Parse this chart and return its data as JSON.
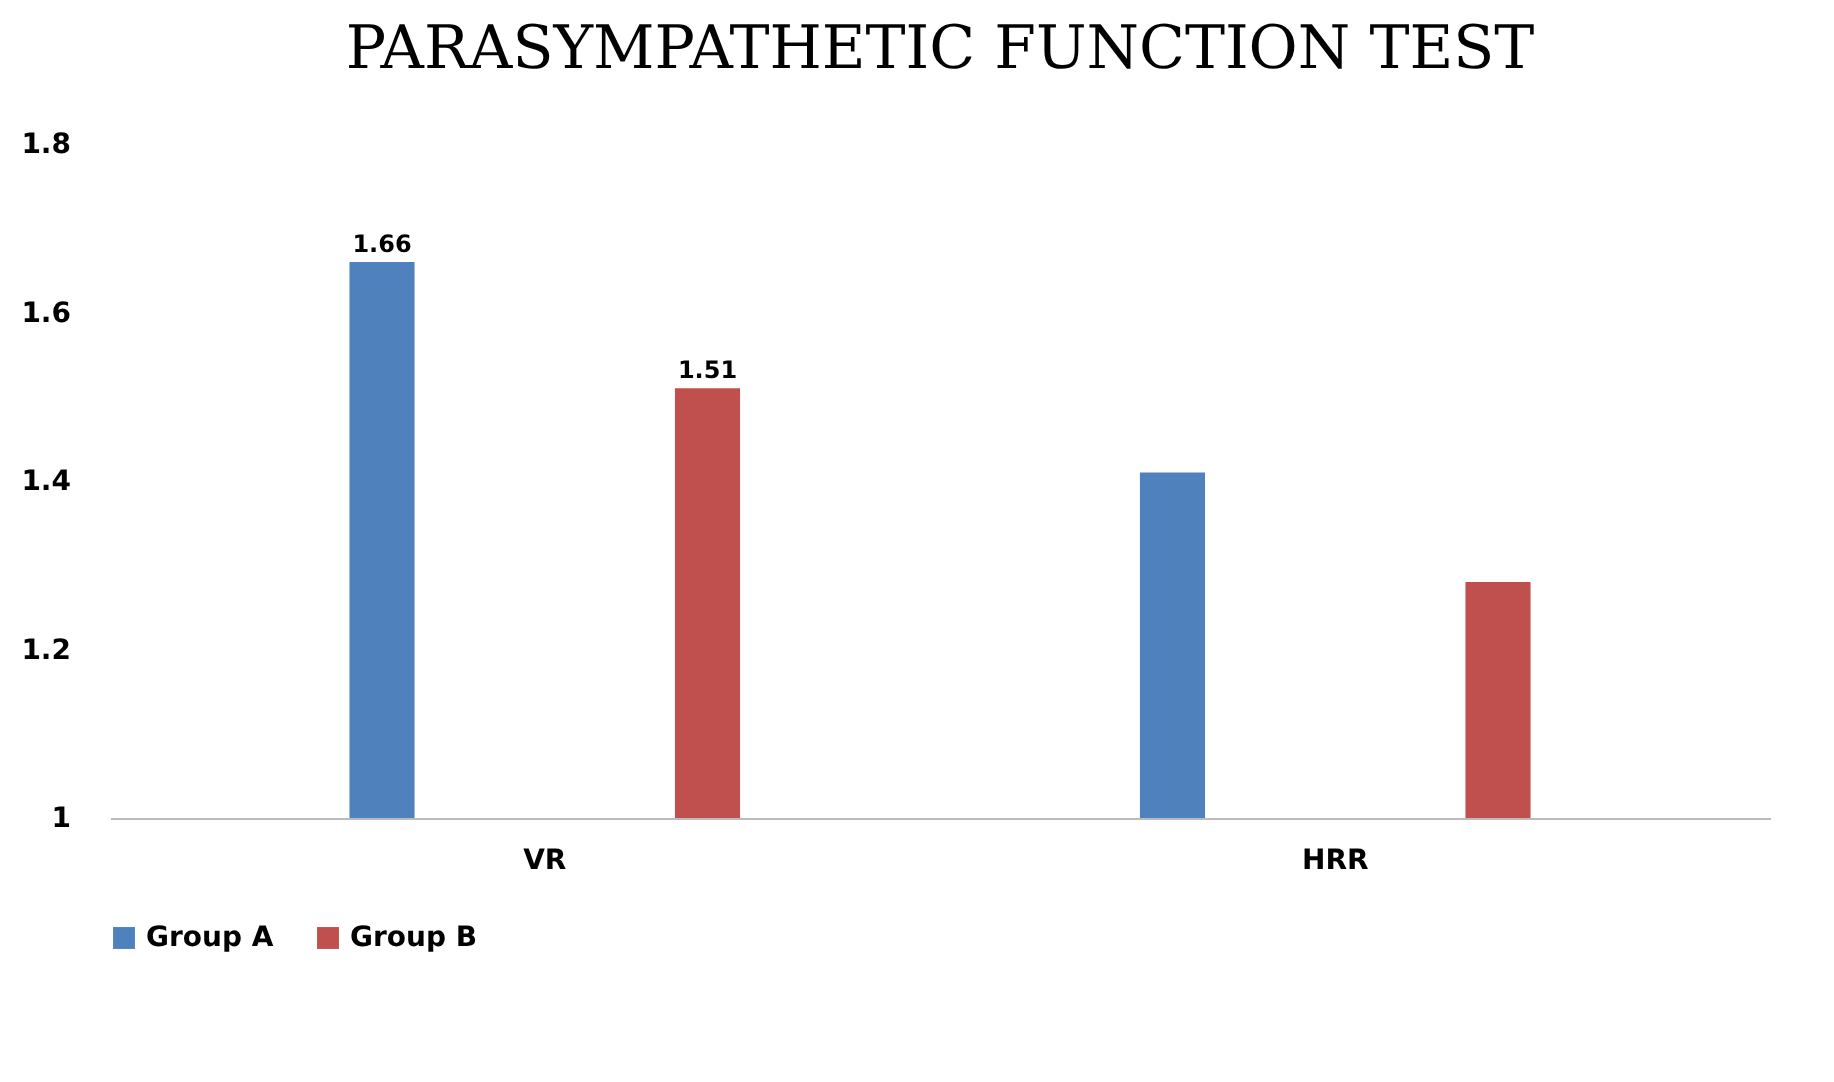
{
  "chart_data": {
    "type": "bar",
    "title": "PARASYMPATHETIC FUNCTION TEST",
    "categories": [
      "VR",
      "HRR"
    ],
    "series": [
      {
        "name": "Group A",
        "color": "#4f81bd",
        "values": [
          1.66,
          1.41
        ],
        "value_labels": [
          "1.66",
          null
        ]
      },
      {
        "name": "Group B",
        "color": "#c0504d",
        "values": [
          1.51,
          1.28
        ],
        "value_labels": [
          "1.51",
          null
        ]
      }
    ],
    "ylim": [
      1,
      1.8
    ],
    "yticks": [
      1,
      1.2,
      1.4,
      1.6,
      1.8
    ],
    "legend": "bottom"
  }
}
